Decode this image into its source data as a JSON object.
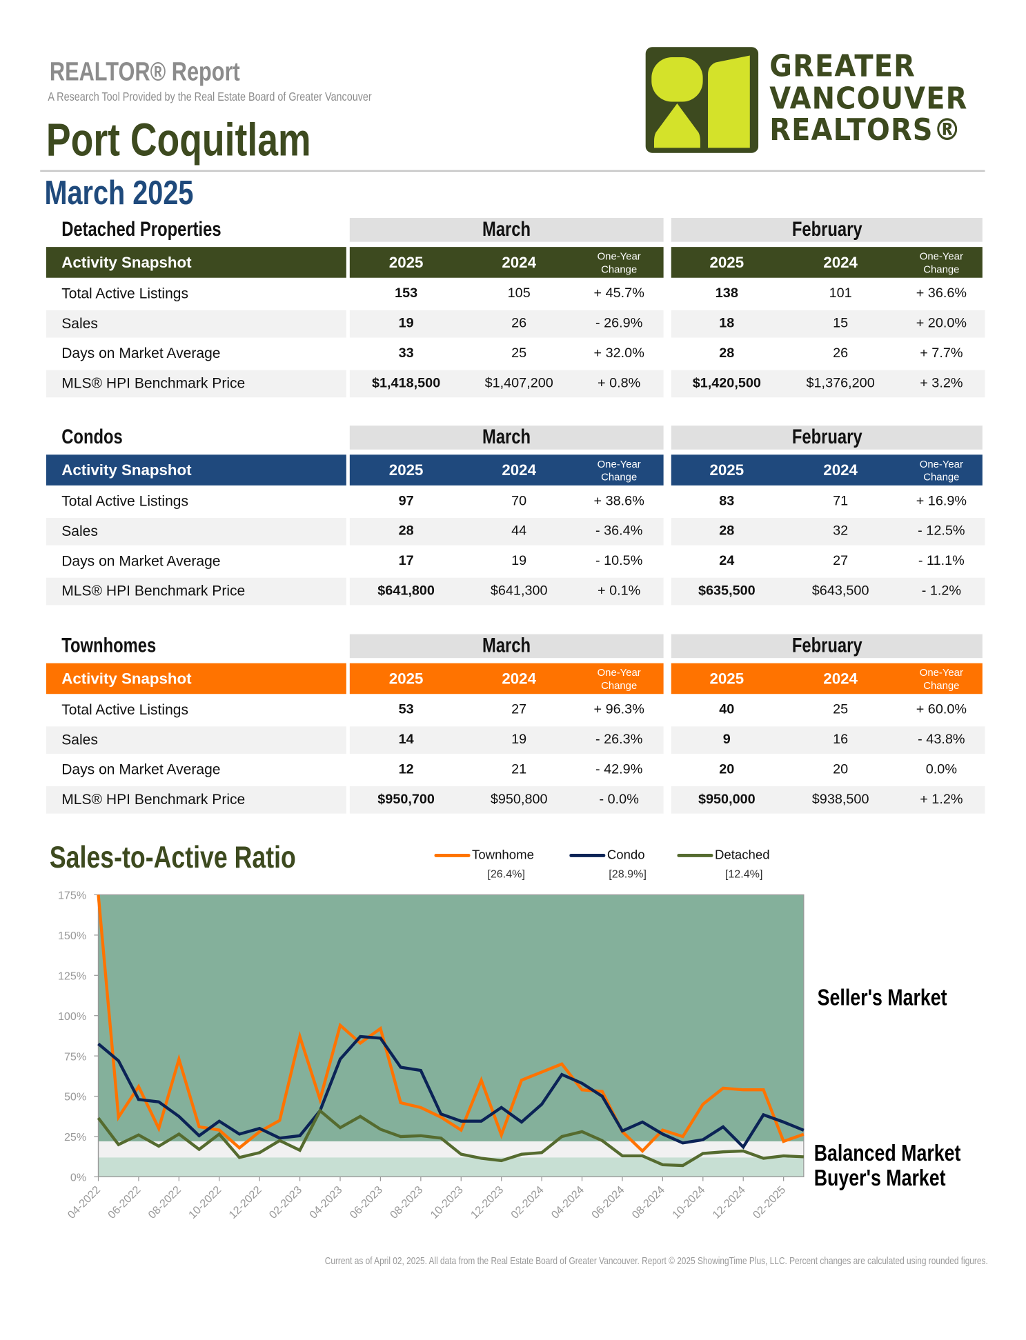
{
  "header": {
    "report_title": "REALTOR® Report",
    "subtitle": "A Research Tool Provided by the Real Estate Board of Greater Vancouver",
    "city": "Port Coquitlam",
    "period": "March 2025",
    "logo_lines": [
      "GREATER",
      "VANCOUVER",
      "REALTORS®"
    ]
  },
  "colors": {
    "detached": "#3d4a1f",
    "condo": "#1f497d",
    "townhome": "#ff7300",
    "olive_text": "#3d4a1f",
    "blue_text": "#1f4a7c",
    "lime": "#d4e22a"
  },
  "table_headers": {
    "snapshot": "Activity Snapshot",
    "groups": [
      "March",
      "February"
    ],
    "years": [
      "2025",
      "2024"
    ],
    "change": [
      "One-Year",
      "Change"
    ]
  },
  "sections": [
    {
      "title": "Detached Properties",
      "color_key": "detached",
      "rows": [
        {
          "label": "Total Active Listings",
          "march": [
            "153",
            "105",
            "+ 45.7%"
          ],
          "february": [
            "138",
            "101",
            "+ 36.6%"
          ]
        },
        {
          "label": "Sales",
          "march": [
            "19",
            "26",
            "- 26.9%"
          ],
          "february": [
            "18",
            "15",
            "+ 20.0%"
          ]
        },
        {
          "label": "Days on Market Average",
          "march": [
            "33",
            "25",
            "+ 32.0%"
          ],
          "february": [
            "28",
            "26",
            "+ 7.7%"
          ]
        },
        {
          "label": "MLS® HPI Benchmark Price",
          "march": [
            "$1,418,500",
            "$1,407,200",
            "+ 0.8%"
          ],
          "february": [
            "$1,420,500",
            "$1,376,200",
            "+ 3.2%"
          ]
        }
      ]
    },
    {
      "title": "Condos",
      "color_key": "condo",
      "rows": [
        {
          "label": "Total Active Listings",
          "march": [
            "97",
            "70",
            "+ 38.6%"
          ],
          "february": [
            "83",
            "71",
            "+ 16.9%"
          ]
        },
        {
          "label": "Sales",
          "march": [
            "28",
            "44",
            "- 36.4%"
          ],
          "february": [
            "28",
            "32",
            "- 12.5%"
          ]
        },
        {
          "label": "Days on Market Average",
          "march": [
            "17",
            "19",
            "- 10.5%"
          ],
          "february": [
            "24",
            "27",
            "- 11.1%"
          ]
        },
        {
          "label": "MLS® HPI Benchmark Price",
          "march": [
            "$641,800",
            "$641,300",
            "+ 0.1%"
          ],
          "february": [
            "$635,500",
            "$643,500",
            "- 1.2%"
          ]
        }
      ]
    },
    {
      "title": "Townhomes",
      "color_key": "townhome",
      "rows": [
        {
          "label": "Total Active Listings",
          "march": [
            "53",
            "27",
            "+ 96.3%"
          ],
          "february": [
            "40",
            "25",
            "+ 60.0%"
          ]
        },
        {
          "label": "Sales",
          "march": [
            "14",
            "19",
            "- 26.3%"
          ],
          "february": [
            "9",
            "16",
            "- 43.8%"
          ]
        },
        {
          "label": "Days on Market Average",
          "march": [
            "12",
            "21",
            "- 42.9%"
          ],
          "february": [
            "20",
            "20",
            "0.0%"
          ]
        },
        {
          "label": "MLS® HPI Benchmark Price",
          "march": [
            "$950,700",
            "$950,800",
            "- 0.0%"
          ],
          "february": [
            "$950,000",
            "$938,500",
            "+ 1.2%"
          ]
        }
      ]
    }
  ],
  "chart_data": {
    "type": "line",
    "title": "Sales-to-Active Ratio",
    "ylim": [
      0,
      175
    ],
    "y_ticks": [
      "0%",
      "25%",
      "50%",
      "75%",
      "100%",
      "125%",
      "150%",
      "175%"
    ],
    "x": [
      "04-2022",
      "05-2022",
      "06-2022",
      "07-2022",
      "08-2022",
      "09-2022",
      "10-2022",
      "11-2022",
      "12-2022",
      "01-2023",
      "02-2023",
      "03-2023",
      "04-2023",
      "05-2023",
      "06-2023",
      "07-2023",
      "08-2023",
      "09-2023",
      "10-2023",
      "11-2023",
      "12-2023",
      "01-2024",
      "02-2024",
      "03-2024",
      "04-2024",
      "05-2024",
      "06-2024",
      "07-2024",
      "08-2024",
      "09-2024",
      "10-2024",
      "11-2024",
      "12-2024",
      "01-2025",
      "02-2025",
      "03-2025"
    ],
    "x_tick_labels": [
      "04-2022",
      "06-2022",
      "08-2022",
      "10-2022",
      "12-2022",
      "02-2023",
      "04-2023",
      "06-2023",
      "08-2023",
      "10-2023",
      "12-2023",
      "02-2024",
      "04-2024",
      "06-2024",
      "08-2024",
      "10-2024",
      "12-2024",
      "02-2025"
    ],
    "series": [
      {
        "name": "Townhome",
        "current": "[26.4%]",
        "color": "#ff7300",
        "values": [
          175,
          37,
          56,
          30,
          73,
          31,
          29,
          18,
          28,
          35,
          87,
          48,
          94,
          83,
          92,
          46,
          43,
          37,
          29,
          60,
          26,
          60,
          65,
          70,
          54,
          53,
          28,
          16,
          29,
          25,
          45,
          55,
          54,
          54,
          22,
          26.4
        ]
      },
      {
        "name": "Condo",
        "current": "[28.9%]",
        "color": "#0b2356",
        "values": [
          82.5,
          72,
          48,
          46.5,
          37.5,
          25.5,
          34.5,
          26.5,
          30,
          24,
          25.5,
          41,
          73,
          87,
          86,
          68,
          66,
          39,
          34.5,
          34.5,
          43,
          34,
          45,
          63.5,
          58,
          50,
          28.5,
          34,
          26.5,
          21,
          23,
          31,
          18.5,
          38.5,
          34,
          28.9
        ]
      },
      {
        "name": "Detached",
        "current": "[12.4%]",
        "color": "#556b2f",
        "values": [
          36.5,
          20,
          26,
          19,
          26.5,
          17,
          26.5,
          12,
          15,
          22.5,
          16.5,
          41,
          30.5,
          37.5,
          29.5,
          25,
          25.5,
          24,
          14,
          11.5,
          10,
          14,
          15,
          25,
          28,
          22.5,
          13,
          13,
          7.5,
          7,
          14.5,
          15.5,
          16,
          11.5,
          13,
          12.4
        ]
      }
    ],
    "bands": [
      {
        "label": "Seller's Market",
        "from": 22,
        "to": 175,
        "color": "#84b09b"
      },
      {
        "label": "Balanced Market",
        "from": 12,
        "to": 22,
        "color": "#f1f1f1"
      },
      {
        "label": "Buyer's Market",
        "from": 0,
        "to": 12,
        "color": "#c7dfd3"
      }
    ],
    "grid": false,
    "legend": "top"
  },
  "footer": "Current as of April 02, 2025. All data from the Real Estate Board of Greater Vancouver.  Report © 2025 ShowingTime Plus, LLC. Percent changes are calculated using rounded figures."
}
